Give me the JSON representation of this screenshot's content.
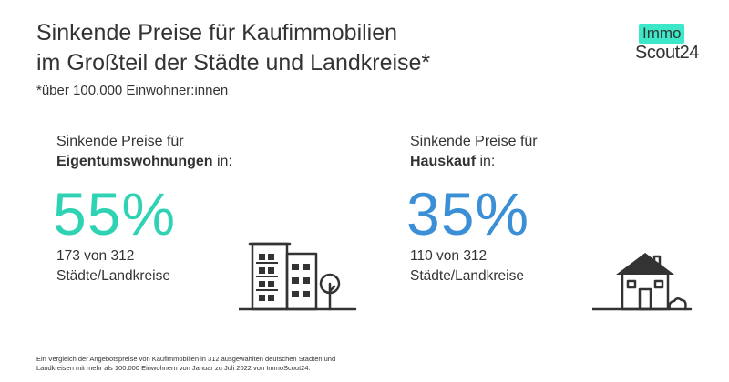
{
  "title": {
    "line1": "Sinkende Preise für Kaufimmobilien",
    "line2": "im Großteil der Städte und Landkreise*"
  },
  "subtitle": "*über 100.000 Einwohner:innen",
  "logo": {
    "top": "Immo",
    "bottom": "Scout24",
    "accent": "#3ce8c7"
  },
  "stats": [
    {
      "lead_line1": "Sinkende Preise für",
      "lead_bold": "Eigentumswohnungen",
      "lead_suffix": " in:",
      "percent": "55%",
      "count_line1": "173 von 312",
      "count_line2": "Städte/Landkreise",
      "color": "#2fd3b4",
      "icon": "apartment-building-icon"
    },
    {
      "lead_line1": "Sinkende Preise für",
      "lead_bold": "Hauskauf",
      "lead_suffix": " in:",
      "percent": "35%",
      "count_line1": "110 von 312",
      "count_line2": "Städte/Landkreise",
      "color": "#3a8fd6",
      "icon": "house-icon"
    }
  ],
  "footnote": {
    "line1": "Ein Vergleich der Angebotspreise von Kaufimmobilien in 312 ausgewählten deutschen Städten und",
    "line2": "Landkreisen mit mehr als 100.000 Einwohnern von Januar zu Juli 2022 von ImmoScout24."
  }
}
